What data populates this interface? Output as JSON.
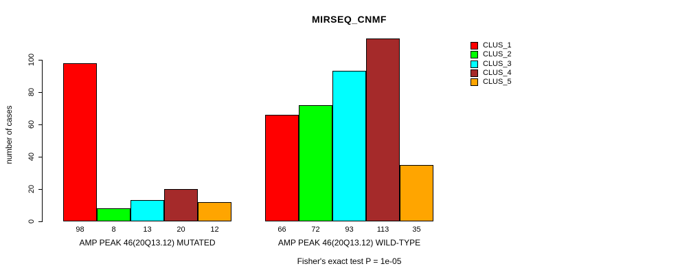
{
  "title": "MIRSEQ_CNMF",
  "chart_data": {
    "type": "bar",
    "title": "MIRSEQ_CNMF",
    "ylabel": "number of cases",
    "xlabel": "",
    "ylim": [
      0,
      100
    ],
    "yticks": [
      0,
      20,
      40,
      60,
      80,
      100
    ],
    "grid": false,
    "legend_position": "right",
    "series_names": [
      "CLUS_1",
      "CLUS_2",
      "CLUS_3",
      "CLUS_4",
      "CLUS_5"
    ],
    "colors": [
      "#FF0000",
      "#00FF00",
      "#00FFFF",
      "#A52A2A",
      "#FFA500"
    ],
    "groups": [
      {
        "label": "AMP PEAK 46(20Q13.12) MUTATED",
        "values": [
          98,
          8,
          13,
          20,
          12
        ]
      },
      {
        "label": "AMP PEAK 46(20Q13.12) WILD-TYPE",
        "values": [
          66,
          72,
          93,
          113,
          35
        ]
      }
    ],
    "footnote": "Fisher's exact test P = 1e-05"
  },
  "legend": {
    "items": [
      {
        "label": "CLUS_1",
        "color": "#FF0000"
      },
      {
        "label": "CLUS_2",
        "color": "#00FF00"
      },
      {
        "label": "CLUS_3",
        "color": "#00FFFF"
      },
      {
        "label": "CLUS_4",
        "color": "#A52A2A"
      },
      {
        "label": "CLUS_5",
        "color": "#FFA500"
      }
    ]
  }
}
